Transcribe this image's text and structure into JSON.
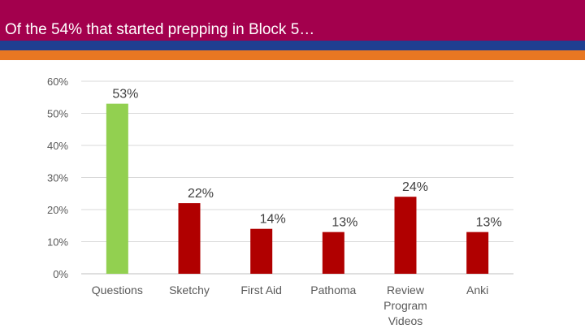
{
  "header": {
    "title": "Of the 54% that started prepping in Block 5…"
  },
  "colors": {
    "header_bg": "#a3004d",
    "stripe_blue": "#1f3f91",
    "stripe_orange": "#e87722",
    "bar_highlight": "#92d050",
    "bar_default": "#b00000"
  },
  "chart_data": {
    "type": "bar",
    "categories": [
      "Questions",
      "Sketchy",
      "First Aid",
      "Pathoma",
      "Review Program Videos",
      "Anki"
    ],
    "category_lines": [
      [
        "Questions"
      ],
      [
        "Sketchy"
      ],
      [
        "First Aid"
      ],
      [
        "Pathoma"
      ],
      [
        "Review",
        "Program",
        "Videos"
      ],
      [
        "Anki"
      ]
    ],
    "values": [
      53,
      22,
      14,
      13,
      24,
      13
    ],
    "data_labels": [
      "53%",
      "22%",
      "14%",
      "13%",
      "24%",
      "13%"
    ],
    "highlight_index": 0,
    "ylim": [
      0,
      60
    ],
    "yticks": [
      0,
      10,
      20,
      30,
      40,
      50,
      60
    ],
    "ytick_labels": [
      "0%",
      "10%",
      "20%",
      "30%",
      "40%",
      "50%",
      "60%"
    ],
    "grid": true,
    "legend": "none"
  }
}
